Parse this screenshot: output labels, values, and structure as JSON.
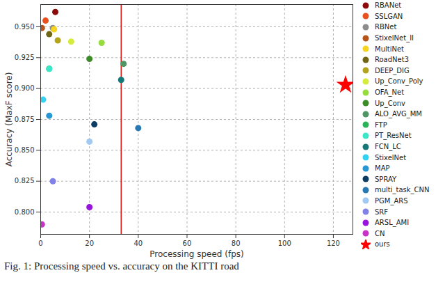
{
  "chart_data": {
    "type": "scatter",
    "caption": "Fig. 1: Processing speed vs. accuracy on the KITTI road",
    "xlabel": "Processing speed (fps)",
    "ylabel": "Accuracy (MaxF score)",
    "xlim": [
      0,
      128
    ],
    "ylim": [
      0.782,
      0.968
    ],
    "xticks": [
      0,
      20,
      40,
      60,
      80,
      100,
      120
    ],
    "yticks": [
      {
        "value": 0.8,
        "label": "0.800"
      },
      {
        "value": 0.825,
        "label": "0.825"
      },
      {
        "value": 0.85,
        "label": "0.850"
      },
      {
        "value": 0.875,
        "label": "0.875"
      },
      {
        "value": 0.9,
        "label": "0.900"
      },
      {
        "value": 0.925,
        "label": "0.925"
      },
      {
        "value": 0.95,
        "label": "0.950"
      }
    ],
    "grid": true,
    "legend": "right",
    "vline": 33,
    "vline_color": "#e8120c",
    "series": [
      {
        "name": "RBANet",
        "color": "#8b0a0a",
        "marker": "circle",
        "x": [
          6
        ],
        "values": [
          0.962
        ]
      },
      {
        "name": "SSLGAN",
        "color": "#e8501e",
        "marker": "circle",
        "x": [
          2
        ],
        "values": [
          0.955
        ]
      },
      {
        "name": "RBNet",
        "color": "#8c8c8c",
        "marker": "circle",
        "x": [
          5
        ],
        "values": [
          0.949
        ]
      },
      {
        "name": "StixelNet_II",
        "color": "#b5541a",
        "marker": "circle",
        "x": [
          0.5
        ],
        "values": [
          0.949
        ]
      },
      {
        "name": "MultiNet",
        "color": "#f5d320",
        "marker": "circle",
        "x": [
          5.5
        ],
        "values": [
          0.948
        ]
      },
      {
        "name": "RoadNet3",
        "color": "#6e6614",
        "marker": "circle",
        "x": [
          3.5
        ],
        "values": [
          0.944
        ]
      },
      {
        "name": "DEEP_DIG",
        "color": "#b4a41c",
        "marker": "circle",
        "x": [
          7
        ],
        "values": [
          0.939
        ]
      },
      {
        "name": "Up_Conv_Poly",
        "color": "#d6ec3c",
        "marker": "circle",
        "x": [
          12.5
        ],
        "values": [
          0.938
        ]
      },
      {
        "name": "OFA_Net",
        "color": "#96dc3c",
        "marker": "circle",
        "x": [
          25
        ],
        "values": [
          0.937
        ]
      },
      {
        "name": "Up_Conv",
        "color": "#3c8c28",
        "marker": "circle",
        "x": [
          20
        ],
        "values": [
          0.924
        ]
      },
      {
        "name": "ALO_AVG_MM",
        "color": "#509664",
        "marker": "circle",
        "x": [
          34
        ],
        "values": [
          0.92
        ]
      },
      {
        "name": "FTP",
        "color": "#2cb45a",
        "marker": "circle",
        "x": [
          3.5
        ],
        "values": [
          0.916
        ]
      },
      {
        "name": "PT_ResNet",
        "color": "#3ce6c8",
        "marker": "circle",
        "x": [
          3.5
        ],
        "values": [
          0.916
        ]
      },
      {
        "name": "FCN_LC",
        "color": "#147878",
        "marker": "circle",
        "x": [
          33
        ],
        "values": [
          0.907
        ]
      },
      {
        "name": "StixelNet",
        "color": "#32d2f0",
        "marker": "circle",
        "x": [
          1
        ],
        "values": [
          0.891
        ]
      },
      {
        "name": "MAP",
        "color": "#2896d2",
        "marker": "circle",
        "x": [
          3.5
        ],
        "values": [
          0.878
        ]
      },
      {
        "name": "SPRAY",
        "color": "#0a3c64",
        "marker": "circle",
        "x": [
          22
        ],
        "values": [
          0.871
        ]
      },
      {
        "name": "multi_task_CNN",
        "color": "#2878b4",
        "marker": "circle",
        "x": [
          40
        ],
        "values": [
          0.868
        ]
      },
      {
        "name": "PGM_ARS",
        "color": "#a0c8f0",
        "marker": "circle",
        "x": [
          20
        ],
        "values": [
          0.857
        ]
      },
      {
        "name": "SRF",
        "color": "#8282e6",
        "marker": "circle",
        "x": [
          5
        ],
        "values": [
          0.825
        ]
      },
      {
        "name": "ARSL_AMI",
        "color": "#9614dc",
        "marker": "circle",
        "x": [
          20
        ],
        "values": [
          0.804
        ]
      },
      {
        "name": "CN",
        "color": "#c832c8",
        "marker": "circle",
        "x": [
          0.5
        ],
        "values": [
          0.79
        ]
      },
      {
        "name": "ours",
        "color": "#ff0000",
        "marker": "star",
        "x": [
          125
        ],
        "values": [
          0.903
        ]
      }
    ]
  }
}
